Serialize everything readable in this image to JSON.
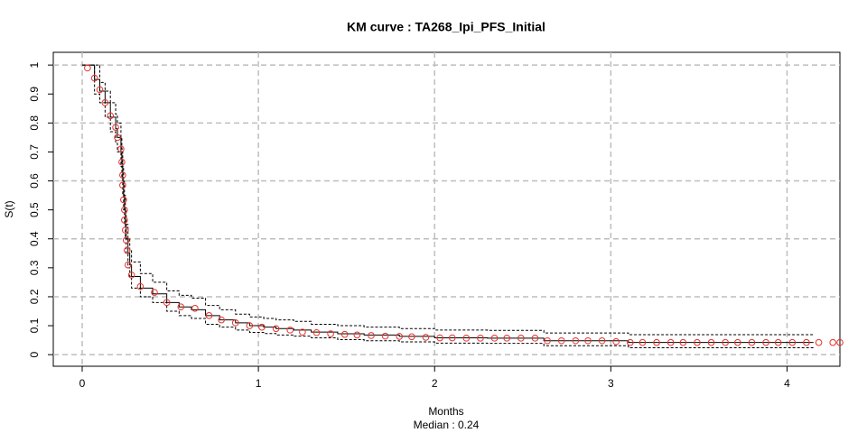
{
  "chart_data": {
    "type": "line",
    "title": "KM curve : TA268_Ipi_PFS_Initial",
    "xlabel": "Months",
    "subtitle": "Median : 0.24",
    "ylabel": "S(t)",
    "xlim": [
      -0.164,
      4.3
    ],
    "ylim": [
      -0.04,
      1.044
    ],
    "xticks": [
      0,
      1,
      2,
      3,
      4
    ],
    "yticks": [
      0,
      0.1,
      0.2,
      0.3,
      0.4,
      0.5,
      0.6,
      0.7,
      0.8,
      0.9,
      1
    ],
    "grid": true,
    "series": [
      {
        "color": "#000000",
        "style": "solid",
        "step": true,
        "x": [
          0,
          0.07,
          0.1,
          0.13,
          0.16,
          0.19,
          0.2,
          0.22,
          0.225,
          0.23,
          0.235,
          0.24,
          0.245,
          0.25,
          0.26,
          0.27,
          0.28,
          0.33,
          0.4,
          0.48,
          0.55,
          0.62,
          0.7,
          0.78,
          0.87,
          0.95,
          1.03,
          1.1,
          1.2,
          1.3,
          1.45,
          1.6,
          1.8,
          2.0,
          2.3,
          2.62,
          3.1,
          4.15
        ],
        "values": [
          1,
          0.95,
          0.91,
          0.87,
          0.82,
          0.78,
          0.75,
          0.7,
          0.66,
          0.6,
          0.55,
          0.5,
          0.45,
          0.4,
          0.35,
          0.31,
          0.27,
          0.23,
          0.21,
          0.18,
          0.165,
          0.155,
          0.135,
          0.12,
          0.11,
          0.1,
          0.095,
          0.09,
          0.085,
          0.078,
          0.072,
          0.068,
          0.063,
          0.058,
          0.057,
          0.048,
          0.042,
          0.042
        ]
      },
      {
        "color": "#000000",
        "style": "dashed",
        "step": true,
        "x": [
          0,
          0.07,
          0.1,
          0.13,
          0.16,
          0.19,
          0.2,
          0.22,
          0.225,
          0.23,
          0.235,
          0.24,
          0.245,
          0.25,
          0.26,
          0.27,
          0.28,
          0.33,
          0.4,
          0.48,
          0.55,
          0.62,
          0.7,
          0.78,
          0.87,
          0.95,
          1.03,
          1.1,
          1.2,
          1.3,
          1.45,
          1.6,
          1.8,
          2.0,
          2.3,
          2.62,
          3.1,
          4.15
        ],
        "values": [
          1,
          1,
          0.94,
          0.91,
          0.87,
          0.83,
          0.8,
          0.75,
          0.71,
          0.65,
          0.6,
          0.55,
          0.5,
          0.45,
          0.4,
          0.36,
          0.32,
          0.28,
          0.25,
          0.22,
          0.205,
          0.195,
          0.17,
          0.155,
          0.14,
          0.13,
          0.125,
          0.12,
          0.115,
          0.105,
          0.1,
          0.095,
          0.09,
          0.085,
          0.084,
          0.075,
          0.069,
          0.069
        ]
      },
      {
        "color": "#000000",
        "style": "dashed",
        "step": true,
        "x": [
          0,
          0.07,
          0.1,
          0.13,
          0.16,
          0.19,
          0.2,
          0.22,
          0.225,
          0.23,
          0.235,
          0.24,
          0.245,
          0.25,
          0.26,
          0.27,
          0.28,
          0.33,
          0.4,
          0.48,
          0.55,
          0.62,
          0.7,
          0.78,
          0.87,
          0.95,
          1.03,
          1.1,
          1.2,
          1.3,
          1.45,
          1.6,
          1.8,
          2.0,
          2.3,
          2.62,
          3.1,
          4.15
        ],
        "values": [
          1,
          0.9,
          0.87,
          0.82,
          0.77,
          0.73,
          0.7,
          0.65,
          0.61,
          0.55,
          0.5,
          0.45,
          0.4,
          0.35,
          0.3,
          0.27,
          0.23,
          0.2,
          0.18,
          0.15,
          0.135,
          0.125,
          0.105,
          0.095,
          0.085,
          0.077,
          0.073,
          0.068,
          0.064,
          0.058,
          0.052,
          0.048,
          0.044,
          0.04,
          0.039,
          0.031,
          0.024,
          0.024
        ]
      },
      {
        "color": "#e8312a",
        "style": "circle",
        "x": [
          0.03,
          0.07,
          0.1,
          0.13,
          0.16,
          0.19,
          0.2,
          0.22,
          0.225,
          0.23,
          0.23,
          0.235,
          0.24,
          0.24,
          0.245,
          0.25,
          0.255,
          0.26,
          0.28,
          0.33,
          0.41,
          0.48,
          0.56,
          0.64,
          0.72,
          0.79,
          0.87,
          0.95,
          1.02,
          1.1,
          1.18,
          1.25,
          1.33,
          1.41,
          1.49,
          1.56,
          1.64,
          1.72,
          1.8,
          1.87,
          1.95,
          2.03,
          2.1,
          2.18,
          2.26,
          2.34,
          2.41,
          2.49,
          2.57,
          2.64,
          2.72,
          2.8,
          2.87,
          2.95,
          3.03,
          3.11,
          3.18,
          3.26,
          3.34,
          3.41,
          3.49,
          3.57,
          3.65,
          3.72,
          3.8,
          3.88,
          3.95,
          4.03,
          4.11,
          4.18,
          4.26,
          4.3
        ],
        "values": [
          0.99,
          0.955,
          0.915,
          0.87,
          0.825,
          0.785,
          0.75,
          0.71,
          0.665,
          0.62,
          0.585,
          0.535,
          0.5,
          0.465,
          0.43,
          0.395,
          0.36,
          0.31,
          0.275,
          0.235,
          0.215,
          0.18,
          0.165,
          0.16,
          0.135,
          0.12,
          0.11,
          0.1,
          0.095,
          0.09,
          0.085,
          0.078,
          0.076,
          0.072,
          0.07,
          0.068,
          0.066,
          0.064,
          0.063,
          0.062,
          0.06,
          0.058,
          0.058,
          0.057,
          0.057,
          0.057,
          0.057,
          0.057,
          0.057,
          0.048,
          0.048,
          0.048,
          0.048,
          0.048,
          0.045,
          0.042,
          0.042,
          0.042,
          0.042,
          0.042,
          0.042,
          0.042,
          0.042,
          0.042,
          0.042,
          0.042,
          0.042,
          0.042,
          0.042,
          0.042,
          0.042,
          0.042
        ]
      }
    ]
  }
}
